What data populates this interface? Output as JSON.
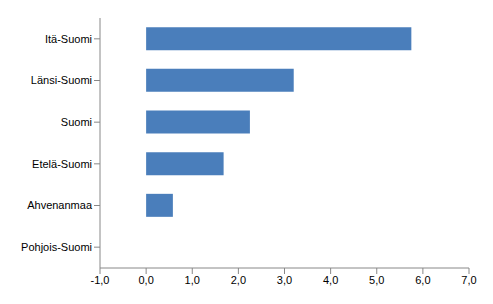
{
  "chart_data": {
    "type": "bar",
    "orientation": "horizontal",
    "categories": [
      "Itä-Suomi",
      "Länsi-Suomi",
      "Suomi",
      "Etelä-Suomi",
      "Ahvenanmaa",
      "Pohjois-Suomi"
    ],
    "values": [
      5.75,
      3.2,
      2.25,
      1.68,
      0.58,
      0.0
    ],
    "color": "#4a7ebb",
    "xlim": [
      -1,
      7
    ],
    "xticks": [
      {
        "value": -1,
        "label": "-1,0"
      },
      {
        "value": 0,
        "label": "0,0"
      },
      {
        "value": 1,
        "label": "1,0"
      },
      {
        "value": 2,
        "label": "2,0"
      },
      {
        "value": 3,
        "label": "3,0"
      },
      {
        "value": 4,
        "label": "4,0"
      },
      {
        "value": 5,
        "label": "5,0"
      },
      {
        "value": 6,
        "label": "6,0"
      },
      {
        "value": 7,
        "label": "7,0"
      }
    ],
    "grid": false
  }
}
